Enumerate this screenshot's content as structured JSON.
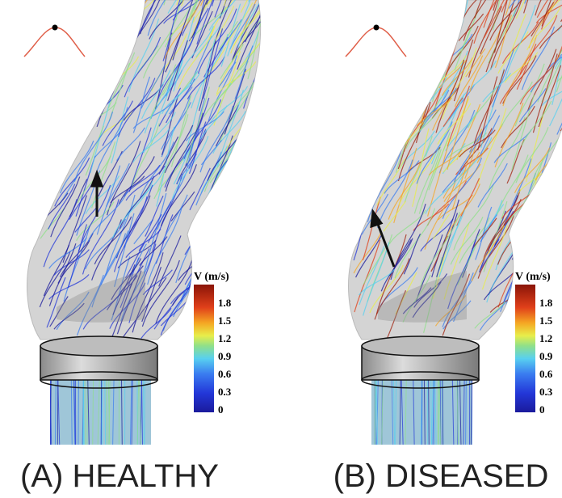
{
  "panels": [
    {
      "label": "(A) HEALTHY",
      "colorbar": {
        "title": "V (m/s)",
        "ticks": [
          0,
          0.3,
          0.6,
          0.9,
          1.2,
          1.5,
          1.8
        ]
      }
    },
    {
      "label": "(B) DISEASED",
      "colorbar": {
        "title": "V (m/s)",
        "ticks": [
          0,
          0.3,
          0.6,
          0.9,
          1.2,
          1.5,
          1.8
        ]
      }
    }
  ]
}
